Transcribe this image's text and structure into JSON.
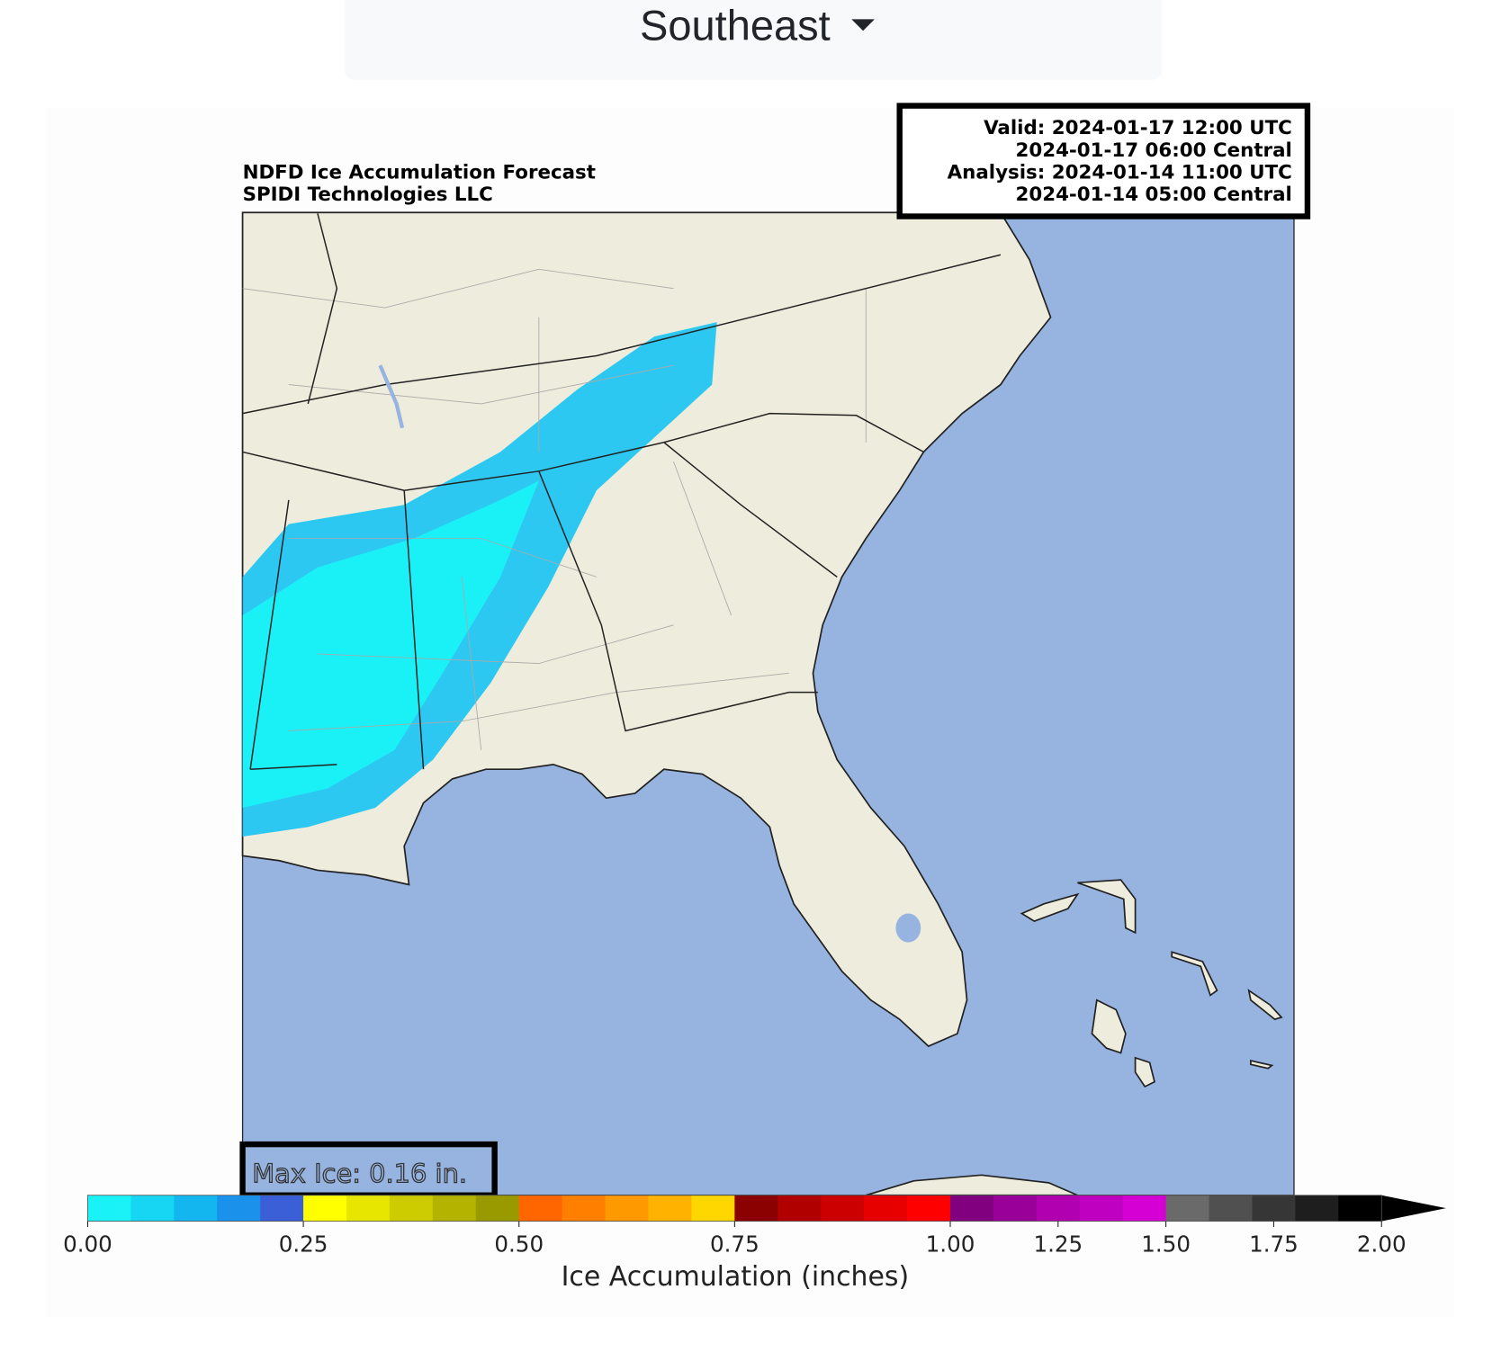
{
  "dropdown": {
    "label": "Southeast"
  },
  "map": {
    "title": [
      "NDFD Ice Accumulation Forecast",
      "SPIDI Technologies LLC"
    ],
    "times": [
      "Valid: 2024-01-17 12:00 UTC",
      "2024-01-17 06:00 Central",
      "Analysis: 2024-01-14 11:00 UTC",
      "2024-01-14 05:00 Central"
    ],
    "max_label": "Max Ice: 0.16 in."
  },
  "colorbar": {
    "label": "Ice Accumulation (inches)",
    "levels": [
      0,
      0.05,
      0.1,
      0.15,
      0.2,
      0.25,
      0.3,
      0.35,
      0.4,
      0.45,
      0.5,
      0.55,
      0.6,
      0.65,
      0.7,
      0.75,
      0.8,
      0.85,
      0.9,
      0.95,
      1.0,
      1.1,
      1.2,
      1.3,
      1.4,
      1.5,
      1.6,
      1.7,
      1.8,
      1.9,
      2.0
    ],
    "colors": [
      "#19f3f7",
      "#17d6f3",
      "#13b6ef",
      "#1a92eb",
      "#3a5fd7",
      "#ffff00",
      "#e6e600",
      "#cccc00",
      "#b3b300",
      "#999900",
      "#ff6600",
      "#ff8000",
      "#ff9900",
      "#ffb300",
      "#ffd700",
      "#8b0000",
      "#b00000",
      "#cc0000",
      "#e60000",
      "#ff0000",
      "#800080",
      "#990099",
      "#b000b0",
      "#c000c0",
      "#d400d4",
      "#6a6a6a",
      "#505050",
      "#363636",
      "#1e1e1e",
      "#000000"
    ],
    "extend_color": "#000000",
    "ticks": [
      {
        "value": 0,
        "label": "0.00"
      },
      {
        "value": 0.25,
        "label": "0.25"
      },
      {
        "value": 0.5,
        "label": "0.50"
      },
      {
        "value": 0.75,
        "label": "0.75"
      },
      {
        "value": 1.0,
        "label": "1.00"
      },
      {
        "value": 1.25,
        "label": "1.25"
      },
      {
        "value": 1.5,
        "label": "1.50"
      },
      {
        "value": 1.75,
        "label": "1.75"
      },
      {
        "value": 2.0,
        "label": "2.00"
      }
    ]
  }
}
